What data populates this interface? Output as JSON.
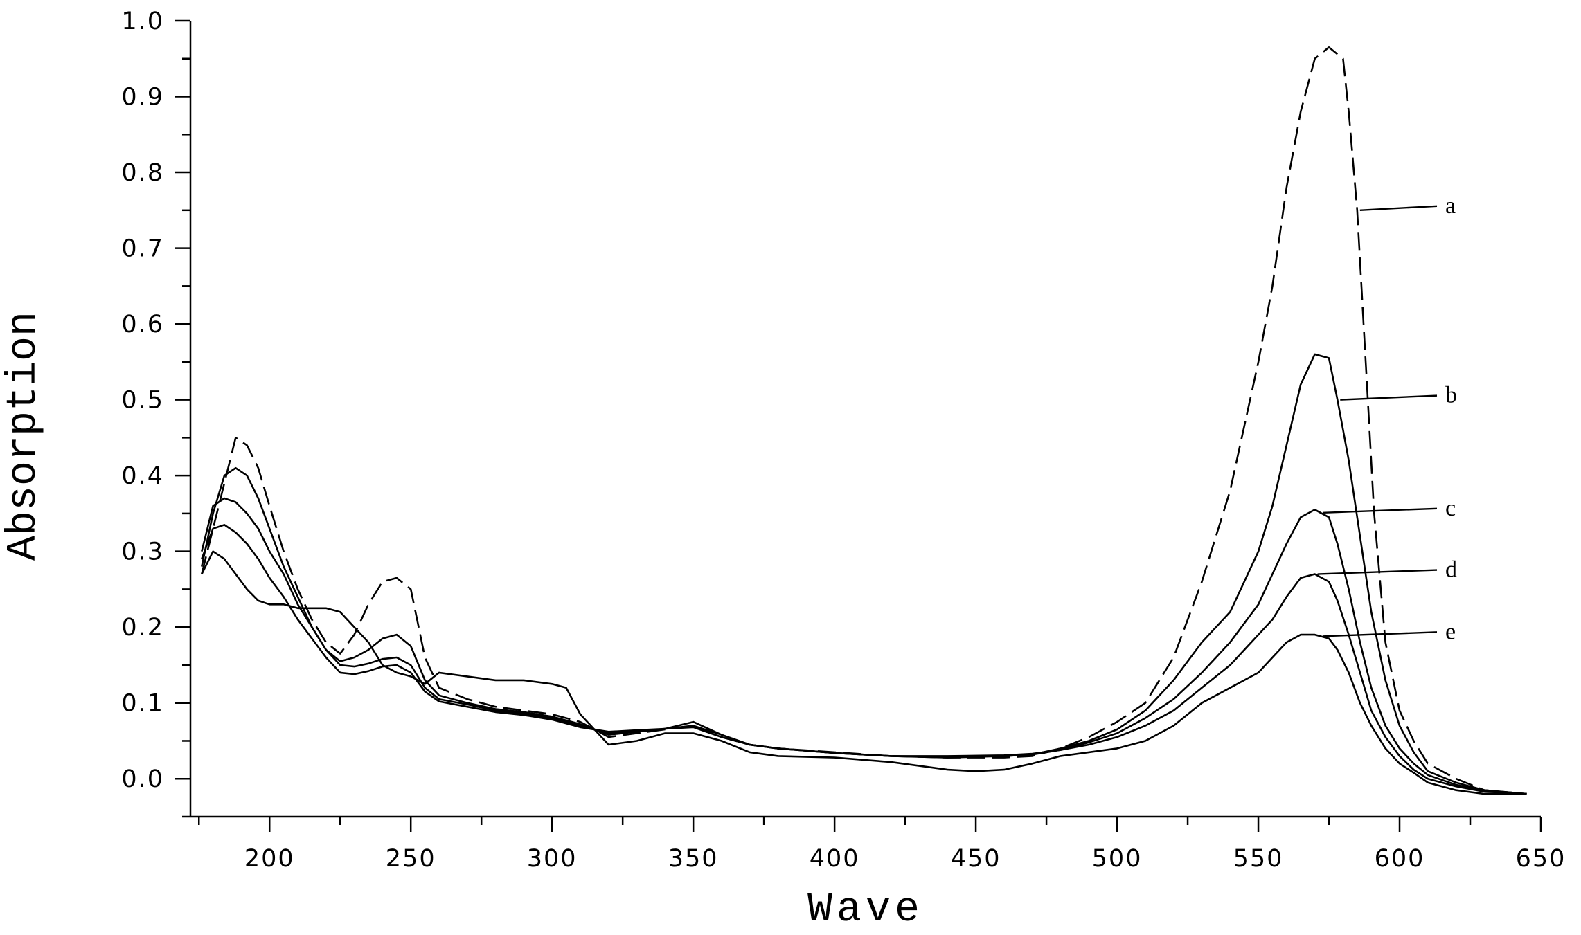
{
  "chart_data": {
    "type": "line",
    "title": "",
    "xlabel": "Wave",
    "ylabel": "Absorption",
    "xlim": [
      172,
      650
    ],
    "ylim": [
      -0.05,
      1.0
    ],
    "xticks": [
      200,
      250,
      300,
      350,
      400,
      450,
      500,
      550,
      600,
      650
    ],
    "xtick_labels": [
      "200",
      "250",
      "300",
      "350",
      "400",
      "450",
      "500",
      "550",
      "600",
      "650"
    ],
    "yticks": [
      0.0,
      0.1,
      0.2,
      0.3,
      0.4,
      0.5,
      0.6,
      0.7,
      0.8,
      0.9,
      1.0
    ],
    "ytick_labels": [
      "0.0",
      "0.1",
      "0.2",
      "0.3",
      "0.4",
      "0.5",
      "0.6",
      "0.7",
      "0.8",
      "0.9",
      "1.0"
    ],
    "grid": false,
    "legend": "series labels at right with leader lines",
    "series": [
      {
        "name": "a",
        "line_style": "dashed",
        "label_at": 585,
        "points": [
          [
            176,
            0.27
          ],
          [
            180,
            0.33
          ],
          [
            184,
            0.39
          ],
          [
            188,
            0.45
          ],
          [
            192,
            0.44
          ],
          [
            196,
            0.41
          ],
          [
            200,
            0.36
          ],
          [
            205,
            0.3
          ],
          [
            210,
            0.25
          ],
          [
            215,
            0.21
          ],
          [
            220,
            0.18
          ],
          [
            225,
            0.165
          ],
          [
            230,
            0.19
          ],
          [
            235,
            0.23
          ],
          [
            240,
            0.26
          ],
          [
            245,
            0.265
          ],
          [
            250,
            0.25
          ],
          [
            255,
            0.16
          ],
          [
            260,
            0.12
          ],
          [
            270,
            0.105
          ],
          [
            280,
            0.095
          ],
          [
            290,
            0.09
          ],
          [
            300,
            0.085
          ],
          [
            310,
            0.075
          ],
          [
            320,
            0.055
          ],
          [
            330,
            0.06
          ],
          [
            340,
            0.065
          ],
          [
            350,
            0.07
          ],
          [
            360,
            0.055
          ],
          [
            370,
            0.045
          ],
          [
            380,
            0.04
          ],
          [
            400,
            0.035
          ],
          [
            420,
            0.03
          ],
          [
            440,
            0.028
          ],
          [
            460,
            0.028
          ],
          [
            470,
            0.03
          ],
          [
            480,
            0.04
          ],
          [
            490,
            0.055
          ],
          [
            500,
            0.075
          ],
          [
            510,
            0.1
          ],
          [
            520,
            0.16
          ],
          [
            530,
            0.26
          ],
          [
            540,
            0.38
          ],
          [
            550,
            0.55
          ],
          [
            555,
            0.65
          ],
          [
            560,
            0.78
          ],
          [
            565,
            0.88
          ],
          [
            570,
            0.95
          ],
          [
            575,
            0.965
          ],
          [
            580,
            0.95
          ],
          [
            582,
            0.88
          ],
          [
            585,
            0.75
          ],
          [
            588,
            0.55
          ],
          [
            591,
            0.35
          ],
          [
            595,
            0.18
          ],
          [
            600,
            0.09
          ],
          [
            605,
            0.05
          ],
          [
            610,
            0.02
          ],
          [
            620,
            0.0
          ],
          [
            630,
            -0.015
          ],
          [
            645,
            -0.02
          ]
        ]
      },
      {
        "name": "b",
        "line_style": "solid",
        "label_at": 578,
        "points": [
          [
            176,
            0.28
          ],
          [
            180,
            0.35
          ],
          [
            184,
            0.4
          ],
          [
            188,
            0.41
          ],
          [
            192,
            0.4
          ],
          [
            196,
            0.37
          ],
          [
            200,
            0.33
          ],
          [
            205,
            0.28
          ],
          [
            210,
            0.24
          ],
          [
            215,
            0.2
          ],
          [
            220,
            0.17
          ],
          [
            225,
            0.155
          ],
          [
            230,
            0.16
          ],
          [
            235,
            0.17
          ],
          [
            240,
            0.185
          ],
          [
            245,
            0.19
          ],
          [
            250,
            0.175
          ],
          [
            255,
            0.13
          ],
          [
            260,
            0.11
          ],
          [
            270,
            0.1
          ],
          [
            280,
            0.092
          ],
          [
            290,
            0.088
          ],
          [
            300,
            0.082
          ],
          [
            310,
            0.072
          ],
          [
            320,
            0.058
          ],
          [
            330,
            0.062
          ],
          [
            340,
            0.066
          ],
          [
            350,
            0.075
          ],
          [
            360,
            0.058
          ],
          [
            370,
            0.045
          ],
          [
            380,
            0.04
          ],
          [
            400,
            0.034
          ],
          [
            420,
            0.03
          ],
          [
            440,
            0.028
          ],
          [
            460,
            0.03
          ],
          [
            470,
            0.032
          ],
          [
            480,
            0.04
          ],
          [
            490,
            0.05
          ],
          [
            500,
            0.065
          ],
          [
            510,
            0.09
          ],
          [
            520,
            0.13
          ],
          [
            530,
            0.18
          ],
          [
            540,
            0.22
          ],
          [
            550,
            0.3
          ],
          [
            555,
            0.36
          ],
          [
            560,
            0.44
          ],
          [
            565,
            0.52
          ],
          [
            570,
            0.56
          ],
          [
            575,
            0.555
          ],
          [
            578,
            0.5
          ],
          [
            582,
            0.42
          ],
          [
            586,
            0.32
          ],
          [
            590,
            0.22
          ],
          [
            595,
            0.13
          ],
          [
            600,
            0.07
          ],
          [
            605,
            0.035
          ],
          [
            610,
            0.01
          ],
          [
            620,
            -0.005
          ],
          [
            630,
            -0.015
          ],
          [
            645,
            -0.02
          ]
        ]
      },
      {
        "name": "c",
        "line_style": "solid",
        "label_at": 572,
        "points": [
          [
            176,
            0.3
          ],
          [
            180,
            0.36
          ],
          [
            184,
            0.37
          ],
          [
            188,
            0.365
          ],
          [
            192,
            0.35
          ],
          [
            196,
            0.33
          ],
          [
            200,
            0.3
          ],
          [
            205,
            0.27
          ],
          [
            210,
            0.23
          ],
          [
            215,
            0.2
          ],
          [
            220,
            0.17
          ],
          [
            225,
            0.15
          ],
          [
            230,
            0.148
          ],
          [
            235,
            0.152
          ],
          [
            240,
            0.158
          ],
          [
            245,
            0.16
          ],
          [
            250,
            0.15
          ],
          [
            255,
            0.12
          ],
          [
            260,
            0.105
          ],
          [
            270,
            0.098
          ],
          [
            280,
            0.09
          ],
          [
            290,
            0.086
          ],
          [
            300,
            0.08
          ],
          [
            310,
            0.07
          ],
          [
            320,
            0.06
          ],
          [
            330,
            0.062
          ],
          [
            340,
            0.066
          ],
          [
            350,
            0.07
          ],
          [
            360,
            0.058
          ],
          [
            370,
            0.045
          ],
          [
            380,
            0.04
          ],
          [
            400,
            0.034
          ],
          [
            420,
            0.03
          ],
          [
            440,
            0.029
          ],
          [
            460,
            0.03
          ],
          [
            470,
            0.032
          ],
          [
            480,
            0.038
          ],
          [
            490,
            0.048
          ],
          [
            500,
            0.06
          ],
          [
            510,
            0.08
          ],
          [
            520,
            0.105
          ],
          [
            530,
            0.14
          ],
          [
            540,
            0.18
          ],
          [
            550,
            0.23
          ],
          [
            555,
            0.27
          ],
          [
            560,
            0.31
          ],
          [
            565,
            0.345
          ],
          [
            570,
            0.355
          ],
          [
            575,
            0.345
          ],
          [
            578,
            0.31
          ],
          [
            582,
            0.25
          ],
          [
            586,
            0.18
          ],
          [
            590,
            0.12
          ],
          [
            595,
            0.07
          ],
          [
            600,
            0.04
          ],
          [
            605,
            0.02
          ],
          [
            610,
            0.005
          ],
          [
            620,
            -0.008
          ],
          [
            630,
            -0.015
          ],
          [
            645,
            -0.02
          ]
        ]
      },
      {
        "name": "d",
        "line_style": "solid",
        "label_at": 570,
        "points": [
          [
            176,
            0.29
          ],
          [
            180,
            0.33
          ],
          [
            184,
            0.335
          ],
          [
            188,
            0.325
          ],
          [
            192,
            0.31
          ],
          [
            196,
            0.29
          ],
          [
            200,
            0.265
          ],
          [
            205,
            0.24
          ],
          [
            210,
            0.21
          ],
          [
            215,
            0.185
          ],
          [
            220,
            0.16
          ],
          [
            225,
            0.14
          ],
          [
            230,
            0.138
          ],
          [
            235,
            0.142
          ],
          [
            240,
            0.148
          ],
          [
            245,
            0.15
          ],
          [
            250,
            0.14
          ],
          [
            255,
            0.115
          ],
          [
            260,
            0.102
          ],
          [
            270,
            0.095
          ],
          [
            280,
            0.088
          ],
          [
            290,
            0.084
          ],
          [
            300,
            0.078
          ],
          [
            310,
            0.068
          ],
          [
            320,
            0.062
          ],
          [
            330,
            0.064
          ],
          [
            340,
            0.066
          ],
          [
            350,
            0.068
          ],
          [
            360,
            0.055
          ],
          [
            370,
            0.045
          ],
          [
            380,
            0.04
          ],
          [
            400,
            0.034
          ],
          [
            420,
            0.03
          ],
          [
            440,
            0.03
          ],
          [
            460,
            0.031
          ],
          [
            470,
            0.033
          ],
          [
            480,
            0.038
          ],
          [
            490,
            0.045
          ],
          [
            500,
            0.055
          ],
          [
            510,
            0.07
          ],
          [
            520,
            0.09
          ],
          [
            530,
            0.12
          ],
          [
            540,
            0.15
          ],
          [
            550,
            0.19
          ],
          [
            555,
            0.21
          ],
          [
            560,
            0.24
          ],
          [
            565,
            0.265
          ],
          [
            570,
            0.27
          ],
          [
            575,
            0.26
          ],
          [
            578,
            0.235
          ],
          [
            582,
            0.19
          ],
          [
            586,
            0.14
          ],
          [
            590,
            0.09
          ],
          [
            595,
            0.055
          ],
          [
            600,
            0.03
          ],
          [
            605,
            0.012
          ],
          [
            610,
            0.0
          ],
          [
            620,
            -0.01
          ],
          [
            630,
            -0.017
          ],
          [
            645,
            -0.02
          ]
        ]
      },
      {
        "name": "e",
        "line_style": "solid",
        "label_at": 572,
        "points": [
          [
            176,
            0.27
          ],
          [
            180,
            0.3
          ],
          [
            184,
            0.29
          ],
          [
            188,
            0.27
          ],
          [
            192,
            0.25
          ],
          [
            196,
            0.235
          ],
          [
            200,
            0.23
          ],
          [
            205,
            0.23
          ],
          [
            210,
            0.225
          ],
          [
            215,
            0.225
          ],
          [
            220,
            0.225
          ],
          [
            225,
            0.22
          ],
          [
            230,
            0.2
          ],
          [
            235,
            0.18
          ],
          [
            240,
            0.15
          ],
          [
            245,
            0.14
          ],
          [
            250,
            0.135
          ],
          [
            255,
            0.125
          ],
          [
            260,
            0.14
          ],
          [
            270,
            0.135
          ],
          [
            280,
            0.13
          ],
          [
            290,
            0.13
          ],
          [
            300,
            0.125
          ],
          [
            305,
            0.12
          ],
          [
            310,
            0.085
          ],
          [
            320,
            0.045
          ],
          [
            330,
            0.05
          ],
          [
            340,
            0.06
          ],
          [
            350,
            0.06
          ],
          [
            360,
            0.05
          ],
          [
            370,
            0.035
          ],
          [
            380,
            0.03
          ],
          [
            400,
            0.028
          ],
          [
            420,
            0.022
          ],
          [
            440,
            0.012
          ],
          [
            450,
            0.01
          ],
          [
            460,
            0.012
          ],
          [
            470,
            0.02
          ],
          [
            480,
            0.03
          ],
          [
            490,
            0.035
          ],
          [
            500,
            0.04
          ],
          [
            510,
            0.05
          ],
          [
            520,
            0.07
          ],
          [
            530,
            0.1
          ],
          [
            540,
            0.12
          ],
          [
            550,
            0.14
          ],
          [
            555,
            0.16
          ],
          [
            560,
            0.18
          ],
          [
            565,
            0.19
          ],
          [
            570,
            0.19
          ],
          [
            575,
            0.185
          ],
          [
            578,
            0.17
          ],
          [
            582,
            0.14
          ],
          [
            586,
            0.1
          ],
          [
            590,
            0.07
          ],
          [
            595,
            0.04
          ],
          [
            600,
            0.02
          ],
          [
            605,
            0.008
          ],
          [
            610,
            -0.005
          ],
          [
            620,
            -0.015
          ],
          [
            630,
            -0.02
          ],
          [
            645,
            -0.02
          ]
        ]
      }
    ]
  }
}
